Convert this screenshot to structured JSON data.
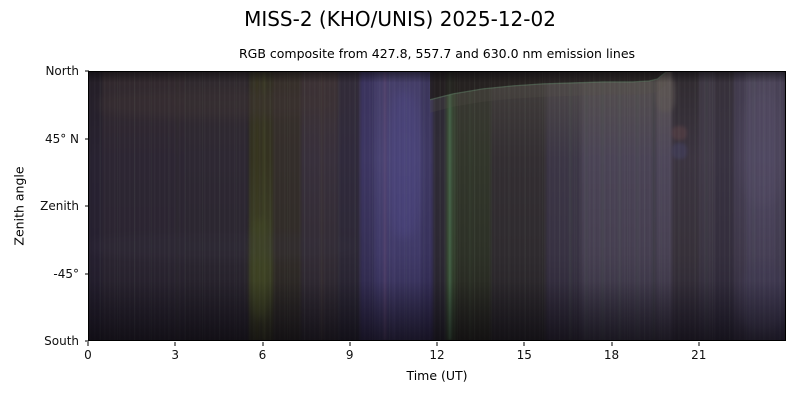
{
  "figure": {
    "background": "#ffffff",
    "text_color": "#000000"
  },
  "chart_data": {
    "type": "heatmap",
    "title": "MISS-2 (KHO/UNIS) 2025-12-02",
    "subtitle": "RGB composite from 427.8, 557.7 and 630.0 nm emission lines",
    "xlabel": "Time (UT)",
    "ylabel": "Zenith angle",
    "xlim": [
      0,
      24
    ],
    "xticks": [
      0,
      3,
      6,
      9,
      12,
      15,
      18,
      21
    ],
    "yticks": [
      "North",
      "45° N",
      "Zenith",
      "-45°",
      "South"
    ],
    "legend": "none",
    "grid": false,
    "description": "Keogram: RGB composite spectrogram image, zenith angle vs time (UT), dark background with colored vertical auroral/airglow bands",
    "bands": [
      {
        "t0": 0.0,
        "t1": 0.45,
        "colors": [
          "#241e26",
          "#282231",
          "#262030",
          "#1b1723"
        ]
      },
      {
        "t0": 0.45,
        "t1": 3.3,
        "colors": [
          "#332a2d",
          "#2d2633",
          "#2b2531",
          "#1f1b26"
        ]
      },
      {
        "t0": 3.3,
        "t1": 5.5,
        "colors": [
          "#322b2e",
          "#2e2833",
          "#2b2630",
          "#1e1a24"
        ]
      },
      {
        "t0": 5.5,
        "t1": 6.35,
        "colors": [
          "#343026",
          "#343220",
          "#3b3e26",
          "#26251a"
        ]
      },
      {
        "t0": 6.35,
        "t1": 7.3,
        "colors": [
          "#38302b",
          "#342e2b",
          "#312c28",
          "#211e1f"
        ]
      },
      {
        "t0": 7.3,
        "t1": 8.6,
        "colors": [
          "#3d3233",
          "#38303c",
          "#332c35",
          "#231f28"
        ]
      },
      {
        "t0": 8.6,
        "t1": 9.35,
        "colors": [
          "#332c38",
          "#302a3c",
          "#2d2836",
          "#1f1c29"
        ]
      },
      {
        "t0": 9.35,
        "t1": 9.85,
        "colors": [
          "#3a335c",
          "#3d3663",
          "#363057",
          "#272141"
        ]
      },
      {
        "t0": 9.85,
        "t1": 11.45,
        "colors": [
          "#443d66",
          "#494372",
          "#403a68",
          "#2b2647"
        ]
      },
      {
        "t0": 11.45,
        "t1": 11.85,
        "colors": [
          "#3b355a",
          "#3e3862",
          "#38325c",
          "#272143"
        ]
      },
      {
        "t0": 11.85,
        "t1": 12.3,
        "colors": [
          "#2d2934",
          "#2f2b36",
          "#2c2833",
          "#201d27"
        ]
      },
      {
        "t0": 12.3,
        "t1": 12.65,
        "colors": [
          "#35402f",
          "#384433",
          "#33402d",
          "#242c1f"
        ]
      },
      {
        "t0": 12.65,
        "t1": 13.85,
        "colors": [
          "#3b3834",
          "#32362b",
          "#2d3127",
          "#211f1b"
        ]
      },
      {
        "t0": 13.85,
        "t1": 15.75,
        "colors": [
          "#44403d",
          "#332e32",
          "#2f2b2f",
          "#211e23"
        ]
      },
      {
        "t0": 15.75,
        "t1": 16.95,
        "colors": [
          "#4f4a47",
          "#3c3646",
          "#383243",
          "#272231"
        ]
      },
      {
        "t0": 16.95,
        "t1": 19.5,
        "colors": [
          "#55504c",
          "#4b4456",
          "#463f51",
          "#2f2b3b"
        ]
      },
      {
        "t0": 19.5,
        "t1": 20.1,
        "colors": [
          "#5b5450",
          "#4e475a",
          "#484153",
          "#302b3b"
        ]
      },
      {
        "t0": 20.1,
        "t1": 21.05,
        "colors": [
          "#2f2a2e",
          "#3b3440",
          "#37313a",
          "#272231"
        ]
      },
      {
        "t0": 21.05,
        "t1": 21.6,
        "colors": [
          "#3e3843",
          "#413a48",
          "#3b3543",
          "#292434"
        ]
      },
      {
        "t0": 21.6,
        "t1": 22.25,
        "colors": [
          "#373139",
          "#383241",
          "#342e3d",
          "#252131"
        ]
      },
      {
        "t0": 22.25,
        "t1": 22.65,
        "colors": [
          "#423b4d",
          "#453e53",
          "#3f384a",
          "#2c2739"
        ]
      },
      {
        "t0": 22.65,
        "t1": 23.65,
        "colors": [
          "#4d4659",
          "#4f4861",
          "#463f55",
          "#312c41"
        ]
      },
      {
        "t0": 23.65,
        "t1": 24.0,
        "colors": [
          "#484155",
          "#4a4359",
          "#413b4f",
          "#2e2941"
        ]
      }
    ],
    "lines": [
      {
        "t": 3.05,
        "w": 1,
        "c": "#3a3f2f",
        "o": 0.35
      },
      {
        "t": 5.8,
        "w": 2,
        "c": "#45471f",
        "o": 0.4
      },
      {
        "t": 6.05,
        "w": 2,
        "c": "#4a4f2a",
        "o": 0.5
      },
      {
        "t": 8.05,
        "w": 2,
        "c": "#4a3a35",
        "o": 0.35
      },
      {
        "t": 10.2,
        "w": 2,
        "c": "#6a4870",
        "o": 0.5
      },
      {
        "t": 10.5,
        "w": 1,
        "c": "#55497a",
        "o": 0.5
      },
      {
        "t": 12.34,
        "w": 1,
        "c": "#44603f",
        "o": 0.5
      },
      {
        "t": 12.45,
        "w": 2,
        "c": "#4e7a58",
        "o": 0.85
      },
      {
        "t": 13.15,
        "w": 1,
        "c": "#3f5a3c",
        "o": 0.35
      },
      {
        "t": 16.6,
        "w": 1,
        "c": "#4f6a55",
        "o": 0.4
      },
      {
        "t": 17.15,
        "w": 1,
        "c": "#4f6a55",
        "o": 0.35
      },
      {
        "t": 17.7,
        "w": 1,
        "c": "#4f6a55",
        "o": 0.4
      },
      {
        "t": 18.3,
        "w": 1,
        "c": "#4f6a55",
        "o": 0.35
      },
      {
        "t": 18.9,
        "w": 1,
        "c": "#4f6a55",
        "o": 0.35
      },
      {
        "t": 19.45,
        "w": 1,
        "c": "#4f6a55",
        "o": 0.3
      },
      {
        "t": 21.3,
        "w": 1,
        "c": "#4a6a55",
        "o": 0.25
      },
      {
        "t": 22.9,
        "w": 1,
        "c": "#4f6a55",
        "o": 0.25
      }
    ],
    "patches": [
      {
        "t0": 0.3,
        "t1": 8.6,
        "y0": 0.07,
        "y1": 0.17,
        "c": "#3e3434",
        "o": 0.4,
        "b": 5
      },
      {
        "t0": 0.0,
        "t1": 9.3,
        "y0": 0.6,
        "y1": 0.7,
        "c": "#363240",
        "o": 0.25,
        "b": 5
      },
      {
        "t0": 5.55,
        "t1": 6.25,
        "y0": 0.55,
        "y1": 0.92,
        "c": "#434a25",
        "o": 0.5,
        "b": 4
      },
      {
        "t0": 10.3,
        "t1": 11.4,
        "y0": 0.07,
        "y1": 0.62,
        "c": "#4c4682",
        "o": 0.5,
        "b": 5
      },
      {
        "t0": 19.55,
        "t1": 20.2,
        "y0": 0.01,
        "y1": 0.15,
        "c": "#5e5754",
        "o": 0.6,
        "b": 2
      },
      {
        "t0": 20.1,
        "t1": 20.62,
        "y0": 0.2,
        "y1": 0.255,
        "c": "#5e4247",
        "o": 0.55,
        "b": 1
      },
      {
        "t0": 20.1,
        "t1": 20.62,
        "y0": 0.265,
        "y1": 0.325,
        "c": "#434060",
        "o": 0.6,
        "b": 1
      },
      {
        "t0": 22.5,
        "t1": 23.9,
        "y0": 0.08,
        "y1": 0.5,
        "c": "#544c64",
        "o": 0.35,
        "b": 5
      },
      {
        "t0": 22.4,
        "t1": 24.0,
        "y0": 0.72,
        "y1": 0.97,
        "c": "#403a53",
        "o": 0.45,
        "b": 4
      }
    ],
    "arc": {
      "points": [
        [
          342,
          28
        ],
        [
          365,
          22
        ],
        [
          395,
          17
        ],
        [
          425,
          14
        ],
        [
          455,
          12
        ],
        [
          485,
          11
        ],
        [
          515,
          10
        ],
        [
          545,
          10
        ],
        [
          562,
          9
        ],
        [
          570,
          7
        ],
        [
          576,
          2
        ],
        [
          579,
          0
        ]
      ],
      "fill": "#221d1d",
      "fill_opacity": 0.8,
      "line_color": "#5d7a62",
      "line_opacity": 0.55,
      "line_width": 1.3,
      "glow_color": "#56504a",
      "glow_opacity": 0.22,
      "glow_offset": 13
    }
  }
}
